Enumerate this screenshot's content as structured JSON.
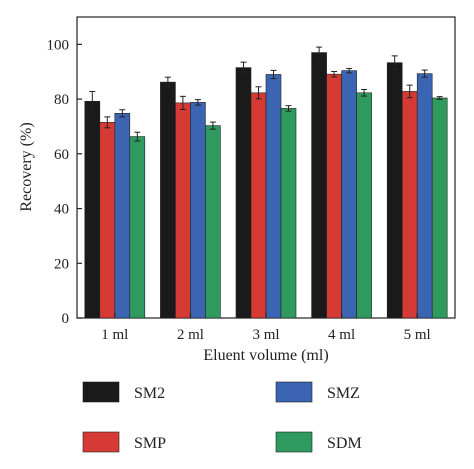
{
  "chart_data": {
    "type": "bar",
    "xlabel": "Eluent volume (ml)",
    "ylabel": "Recovery (%)",
    "ylim": [
      0,
      110
    ],
    "yticks": [
      0,
      20,
      40,
      60,
      80,
      100
    ],
    "categories": [
      "1 ml",
      "2 ml",
      "3 ml",
      "4 ml",
      "5 ml"
    ],
    "series": [
      {
        "name": "SM2",
        "color": "#1a1a1a",
        "values": [
          79.2,
          86.2,
          91.5,
          97.0,
          93.3
        ],
        "errors": [
          3.6,
          1.8,
          2.0,
          2.0,
          2.5
        ]
      },
      {
        "name": "SMP",
        "color": "#d63a35",
        "values": [
          71.5,
          78.6,
          82.3,
          89.1,
          82.8
        ],
        "errors": [
          2.0,
          2.4,
          2.2,
          1.0,
          2.3
        ]
      },
      {
        "name": "SMZ",
        "color": "#3b64b3",
        "values": [
          74.8,
          78.8,
          89.0,
          90.4,
          89.3
        ],
        "errors": [
          1.3,
          1.0,
          1.5,
          0.8,
          1.3
        ]
      },
      {
        "name": "SDM",
        "color": "#2e9a5e",
        "values": [
          66.3,
          70.3,
          76.6,
          82.3,
          80.4
        ],
        "errors": [
          1.6,
          1.3,
          1.0,
          1.2,
          0.5
        ]
      }
    ],
    "legend_position": "bottom",
    "grid": false
  }
}
